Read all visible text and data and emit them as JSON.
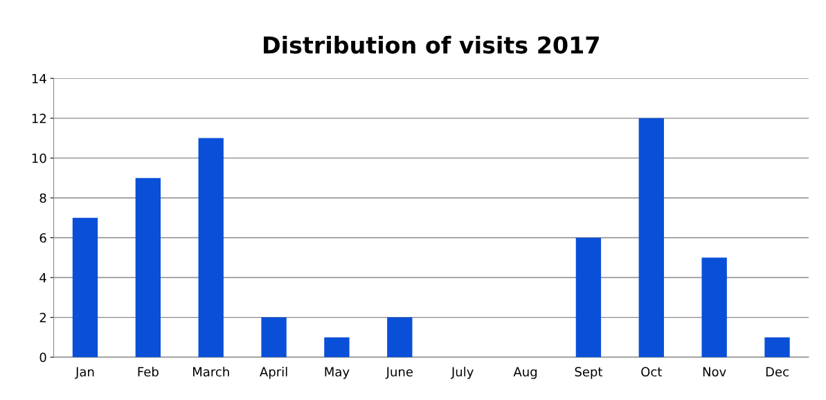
{
  "chart_data": {
    "type": "bar",
    "title": "Distribution of visits 2017",
    "categories": [
      "Jan",
      "Feb",
      "March",
      "April",
      "May",
      "June",
      "July",
      "Aug",
      "Sept",
      "Oct",
      "Nov",
      "Dec"
    ],
    "values": [
      7,
      9,
      11,
      2,
      1,
      2,
      0,
      0,
      6,
      12,
      5,
      1
    ],
    "color": "#0a4fd8",
    "ylim": [
      0,
      14
    ],
    "yticks": [
      0,
      2,
      4,
      6,
      8,
      10,
      12,
      14
    ],
    "grid": "y",
    "legend": false
  }
}
